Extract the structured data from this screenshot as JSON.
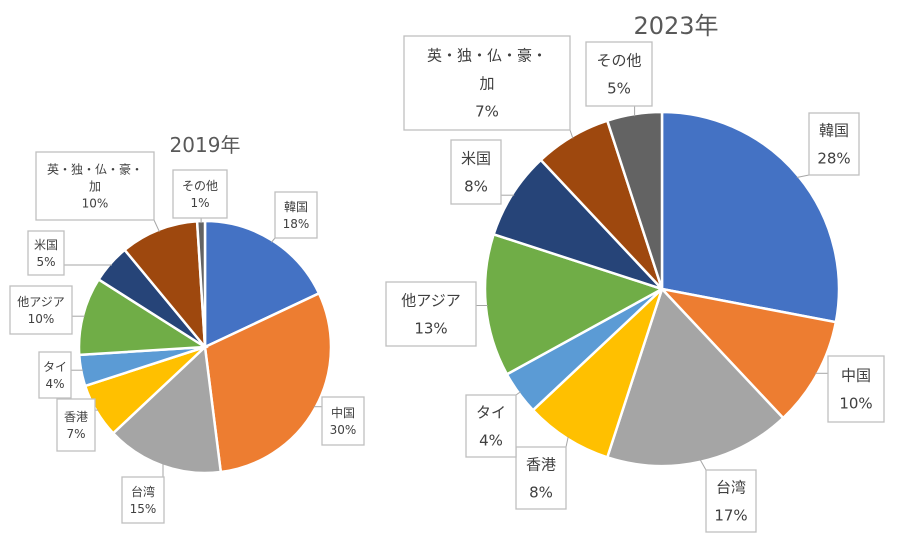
{
  "chart_data": [
    {
      "type": "pie",
      "title": "2019年",
      "slices": [
        {
          "label": "韓国",
          "value": 18,
          "value_label": "18%",
          "color": "#4472c4"
        },
        {
          "label": "中国",
          "value": 30,
          "value_label": "30%",
          "color": "#ed7d31"
        },
        {
          "label": "台湾",
          "value": 15,
          "value_label": "15%",
          "color": "#a5a5a5"
        },
        {
          "label": "香港",
          "value": 7,
          "value_label": "7%",
          "color": "#ffc000"
        },
        {
          "label": "タイ",
          "value": 4,
          "value_label": "4%",
          "color": "#5b9bd5"
        },
        {
          "label": "他アジア",
          "value": 10,
          "value_label": "10%",
          "color": "#70ad47"
        },
        {
          "label": "米国",
          "value": 5,
          "value_label": "5%",
          "color": "#264478"
        },
        {
          "label": "英・独・仏・豪・加",
          "value": 10,
          "value_label": "10%",
          "color": "#9e480e"
        },
        {
          "label": "その他",
          "value": 1,
          "value_label": "1%",
          "color": "#636363"
        }
      ]
    },
    {
      "type": "pie",
      "title": "2023年",
      "slices": [
        {
          "label": "韓国",
          "value": 28,
          "value_label": "28%",
          "color": "#4472c4"
        },
        {
          "label": "中国",
          "value": 10,
          "value_label": "10%",
          "color": "#ed7d31"
        },
        {
          "label": "台湾",
          "value": 17,
          "value_label": "17%",
          "color": "#a5a5a5"
        },
        {
          "label": "香港",
          "value": 8,
          "value_label": "8%",
          "color": "#ffc000"
        },
        {
          "label": "タイ",
          "value": 4,
          "value_label": "4%",
          "color": "#5b9bd5"
        },
        {
          "label": "他アジア",
          "value": 13,
          "value_label": "13%",
          "color": "#70ad47"
        },
        {
          "label": "米国",
          "value": 8,
          "value_label": "8%",
          "color": "#264478"
        },
        {
          "label": "英・独・仏・豪・加",
          "value": 7,
          "value_label": "7%",
          "color": "#9e480e"
        },
        {
          "label": "その他",
          "value": 5,
          "value_label": "5%",
          "color": "#636363"
        }
      ]
    }
  ]
}
